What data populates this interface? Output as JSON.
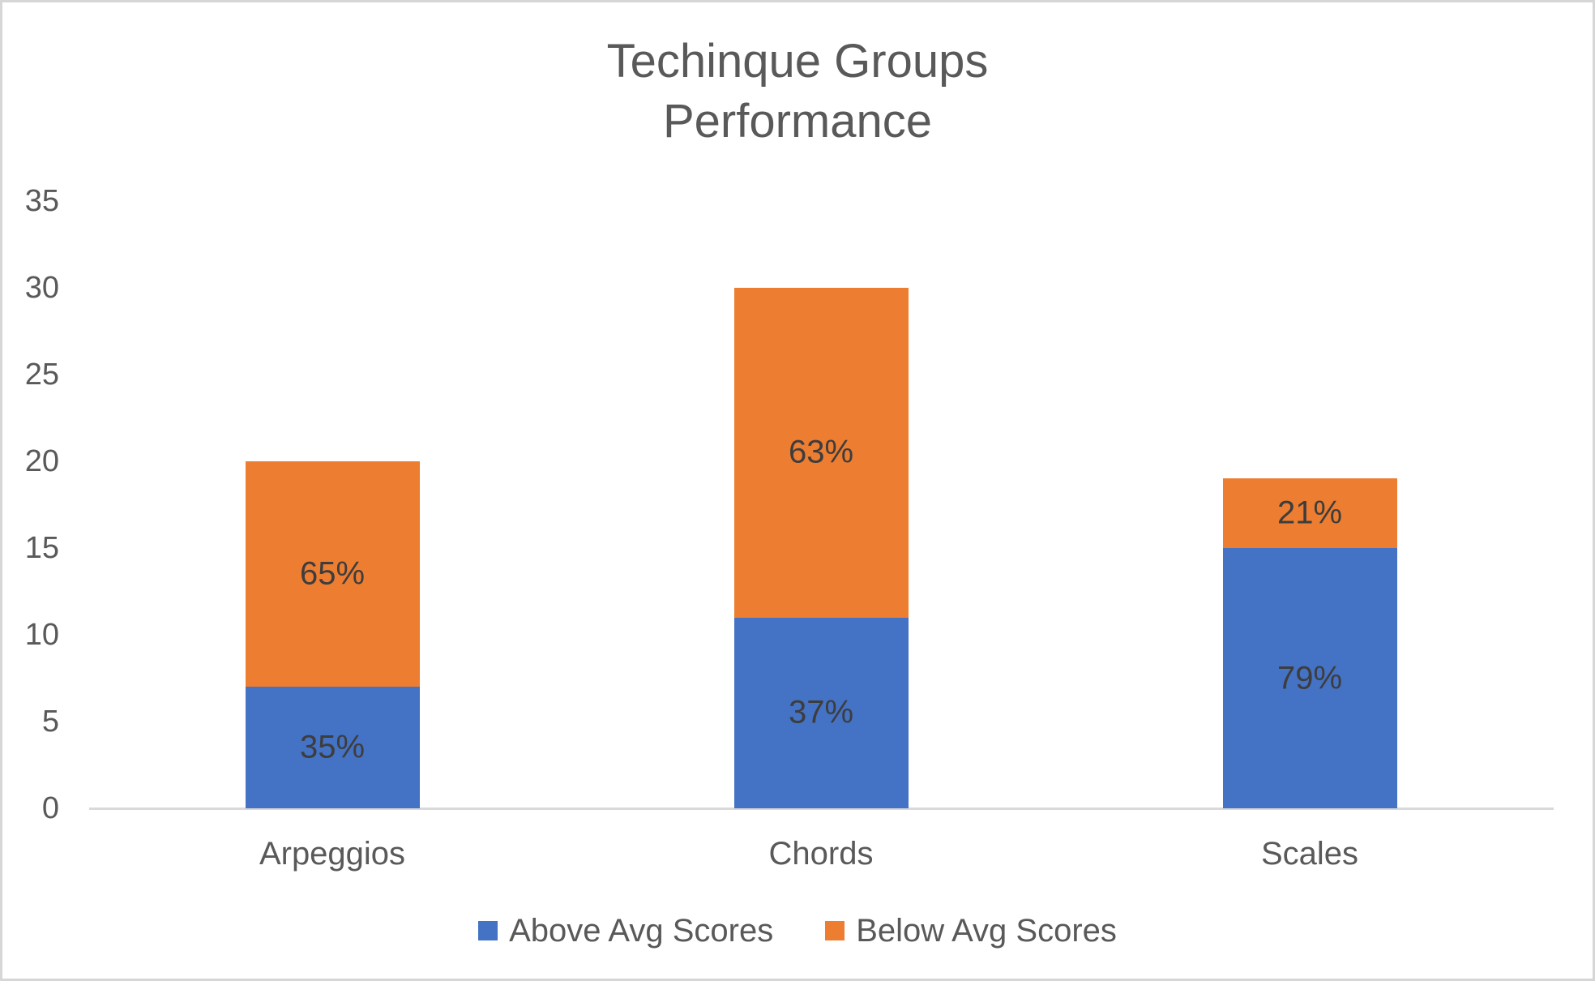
{
  "title": {
    "line1": "Techinque Groups",
    "line2": "Performance"
  },
  "chart_data": {
    "type": "bar",
    "stacked": true,
    "title": "Techinque Groups Performance",
    "categories": [
      "Arpeggios",
      "Chords",
      "Scales"
    ],
    "series": [
      {
        "name": "Above Avg Scores",
        "color": "#4472c4",
        "values": [
          7,
          11,
          15
        ],
        "labels": [
          "35%",
          "37%",
          "79%"
        ]
      },
      {
        "name": "Below Avg Scores",
        "color": "#ed7d31",
        "values": [
          13,
          19,
          4
        ],
        "labels": [
          "65%",
          "63%",
          "21%"
        ]
      }
    ],
    "totals": [
      20,
      30,
      19
    ],
    "xlabel": "",
    "ylabel": "",
    "ylim": [
      0,
      35
    ],
    "yticks": [
      0,
      5,
      10,
      15,
      20,
      25,
      30,
      35
    ],
    "grid": false,
    "legend_position": "bottom"
  },
  "colors": {
    "axis_line": "#d9d9d9",
    "border": "#d6d6d6",
    "title_text": "#595959",
    "axis_text": "#595959",
    "data_label_text": "#3d3d3d"
  }
}
